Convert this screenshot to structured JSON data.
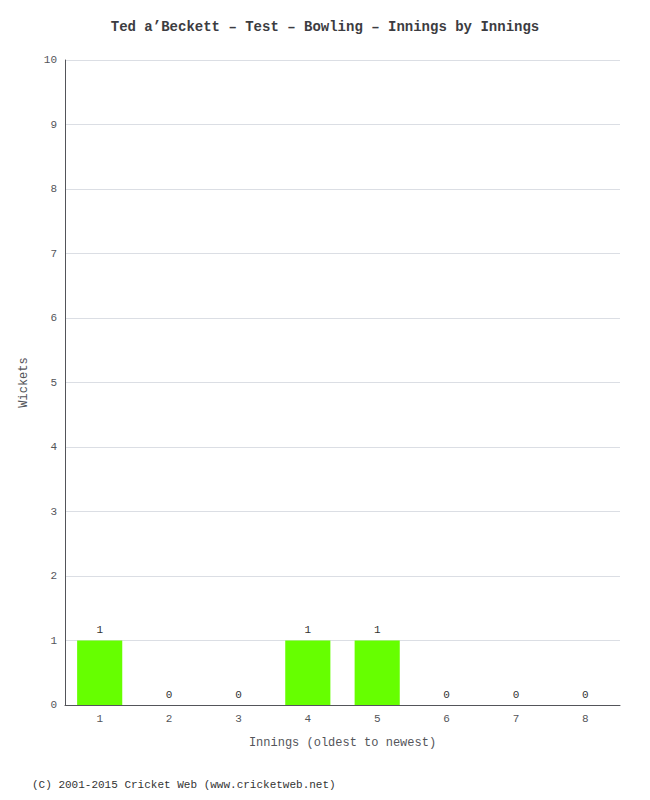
{
  "chart_data": {
    "type": "bar",
    "title": "Ted a’Beckett – Test – Bowling – Innings by Innings",
    "xlabel": "Innings (oldest to newest)",
    "ylabel": "Wickets",
    "categories": [
      "1",
      "2",
      "3",
      "4",
      "5",
      "6",
      "7",
      "8"
    ],
    "values": [
      1,
      0,
      0,
      1,
      1,
      0,
      0,
      0
    ],
    "color": "#66ff00",
    "ylim": [
      0,
      10
    ],
    "yticks": [
      0,
      1,
      2,
      3,
      4,
      5,
      6,
      7,
      8,
      9,
      10
    ],
    "grid": true,
    "data_labels": true,
    "annotations": [
      "(C) 2001-2015 Cricket Web (www.cricketweb.net)"
    ]
  }
}
